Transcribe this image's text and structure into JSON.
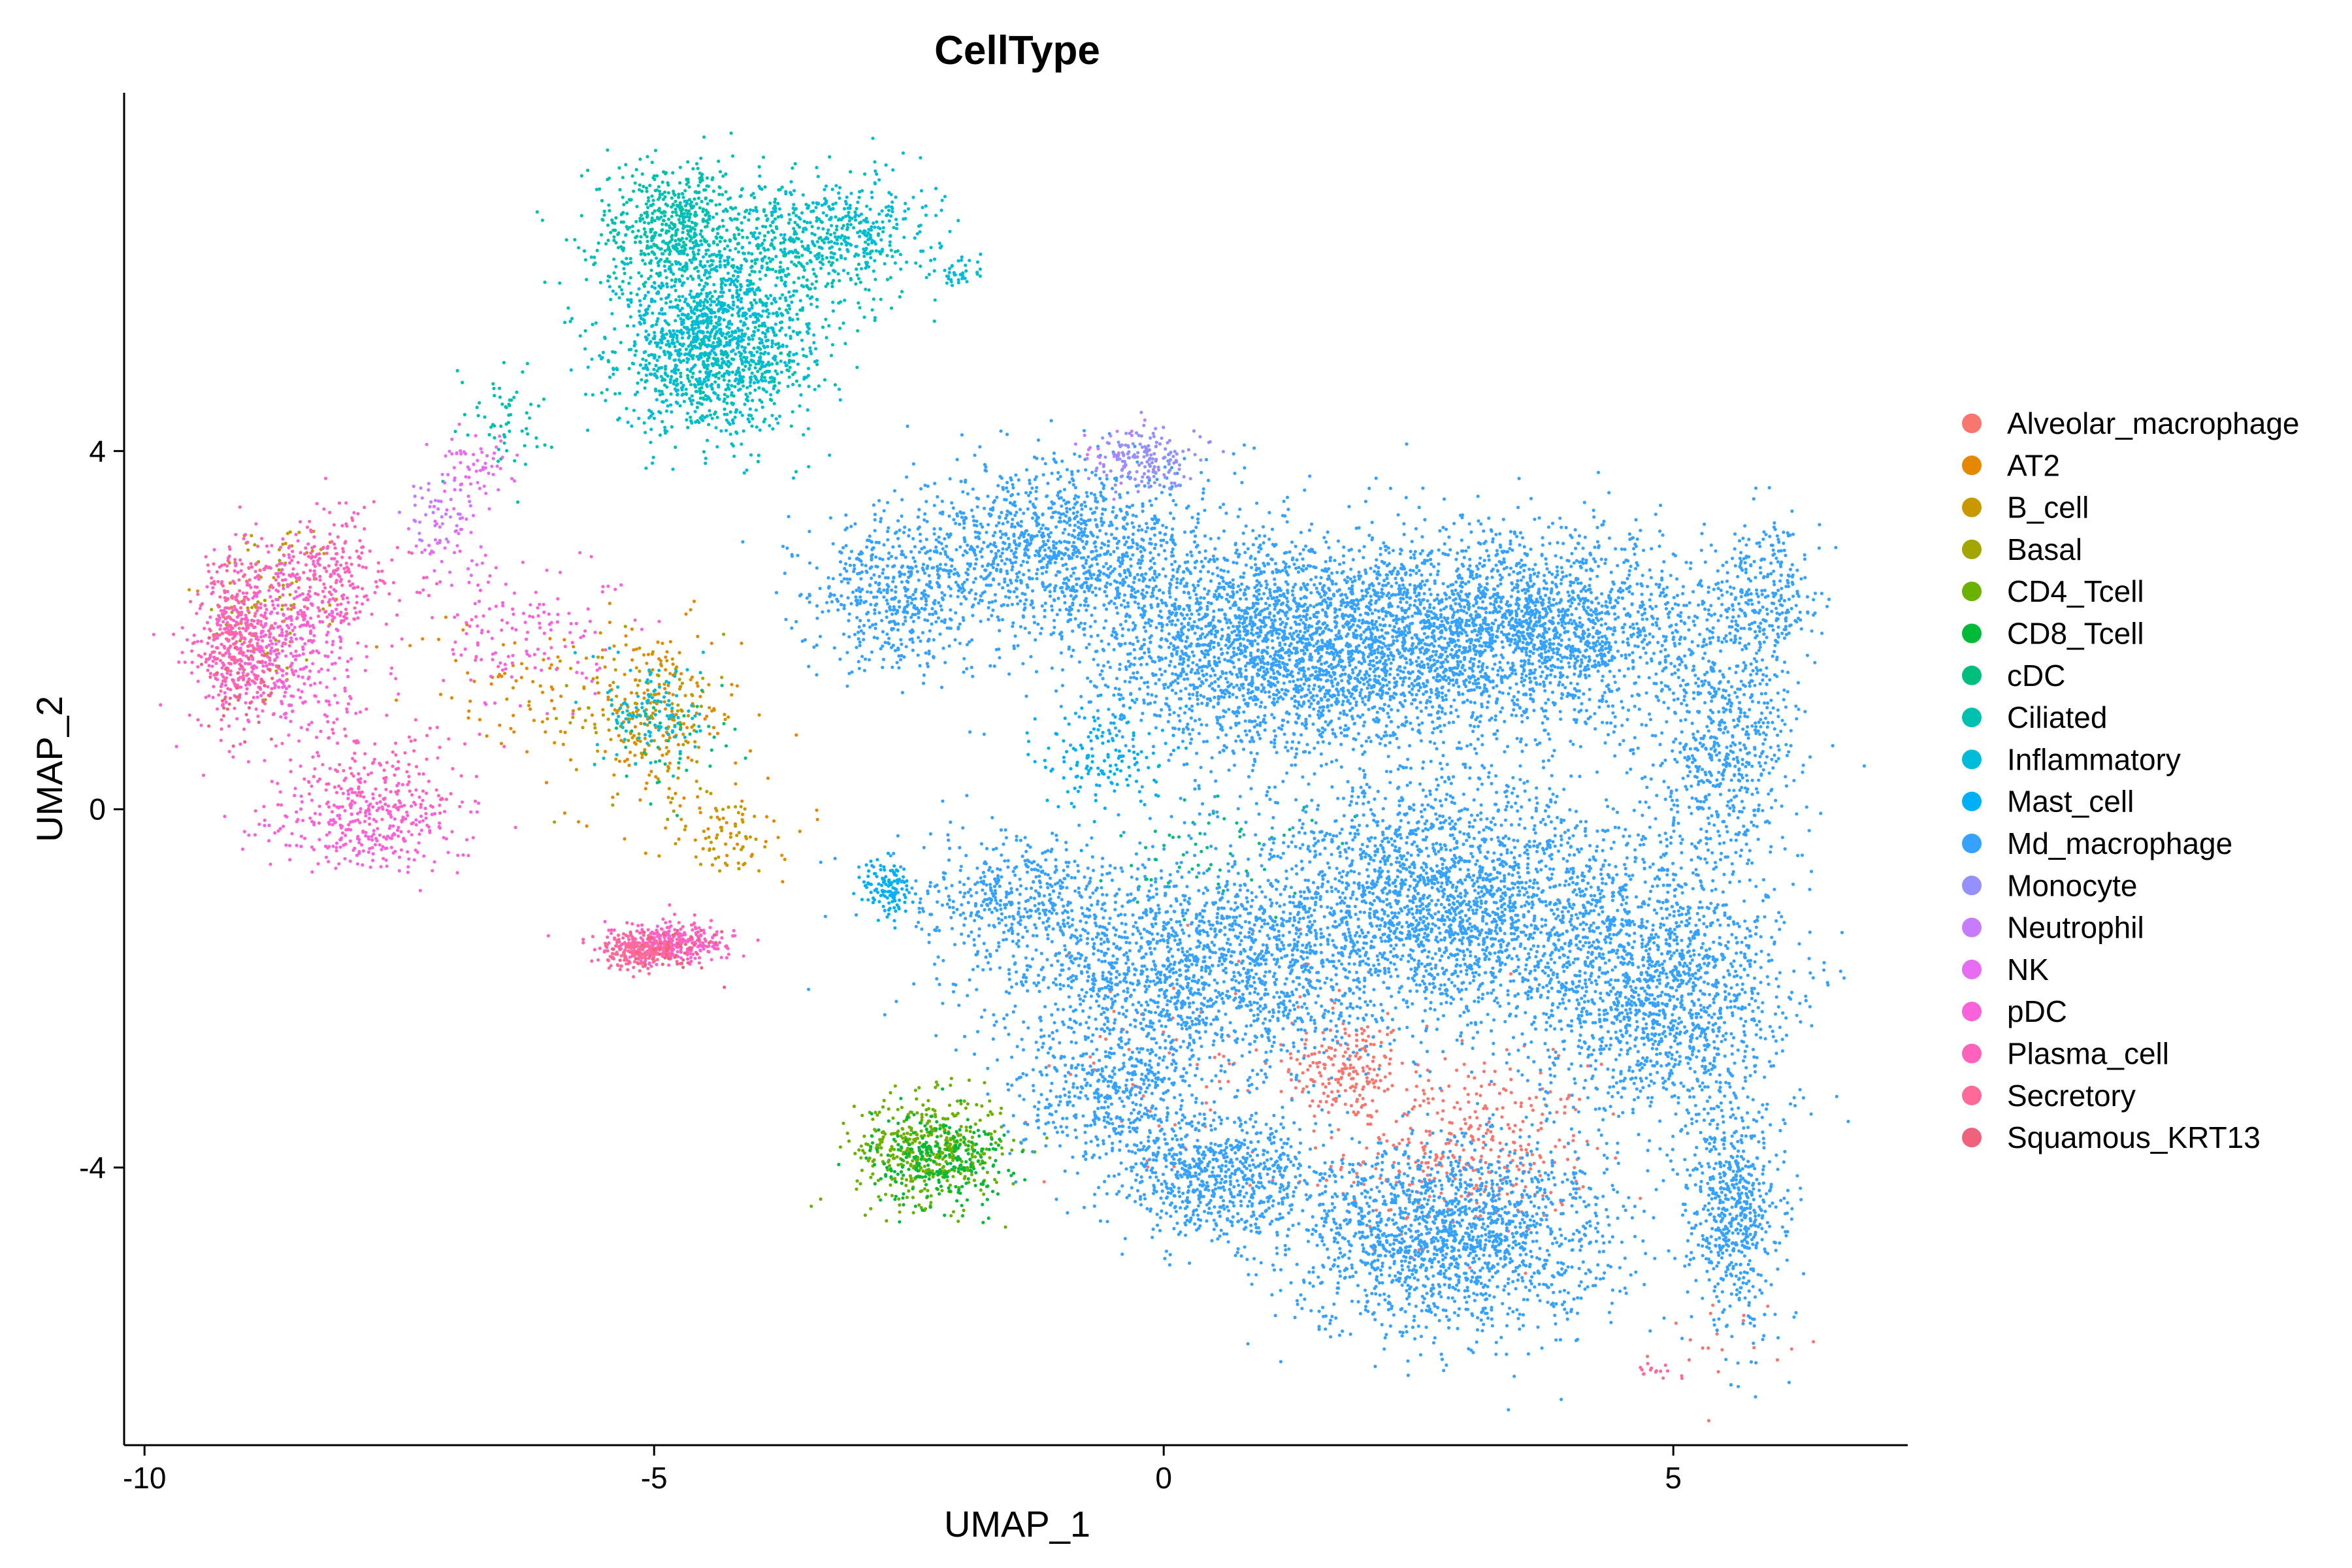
{
  "chart_data": {
    "type": "scatter",
    "title": "CellType",
    "xlabel": "UMAP_1",
    "ylabel": "UMAP_2",
    "xlim": [
      -10.2,
      7.3
    ],
    "ylim": [
      -7.1,
      8.0
    ],
    "x_ticks": [
      -10,
      -5,
      0,
      5
    ],
    "x_tick_labels": [
      "-10",
      "-5",
      "0",
      "5"
    ],
    "y_ticks": [
      -4,
      0,
      4
    ],
    "y_tick_labels": [
      "-4",
      "0",
      "4"
    ],
    "grid": false,
    "legend_position": "right",
    "series": [
      {
        "name": "Alveolar_macrophage",
        "color": "#F8766D",
        "clusters": [
          [
            1.8,
            -2.9,
            0.5,
            0.5,
            180
          ],
          [
            3.0,
            -3.8,
            1.0,
            0.8,
            350
          ],
          [
            0.7,
            -2.8,
            1.5,
            1.2,
            90
          ],
          [
            5.5,
            -5.9,
            0.5,
            0.4,
            20
          ]
        ]
      },
      {
        "name": "AT2",
        "color": "#E58700",
        "clusters": [
          [
            -5.0,
            1.0,
            0.7,
            0.9,
            160
          ],
          [
            -6.5,
            1.4,
            0.8,
            0.7,
            60
          ],
          [
            -4.2,
            -0.2,
            0.6,
            0.5,
            40
          ]
        ]
      },
      {
        "name": "B_cell",
        "color": "#C99800",
        "clusters": [
          [
            -5.1,
            1.1,
            0.6,
            0.7,
            120
          ],
          [
            -4.3,
            -0.3,
            0.5,
            0.4,
            50
          ],
          [
            -8.6,
            2.5,
            0.6,
            0.6,
            60
          ]
        ]
      },
      {
        "name": "Basal",
        "color": "#A3A500",
        "clusters": [
          [
            -8.8,
            2.2,
            0.4,
            0.8,
            40
          ],
          [
            -5.0,
            1.0,
            0.8,
            0.8,
            40
          ]
        ]
      },
      {
        "name": "CD4_Tcell",
        "color": "#6BB100",
        "clusters": [
          [
            -2.3,
            -3.8,
            0.6,
            0.5,
            450
          ]
        ]
      },
      {
        "name": "CD8_Tcell",
        "color": "#00BA38",
        "clusters": [
          [
            -2.2,
            -3.9,
            0.55,
            0.45,
            250
          ]
        ]
      },
      {
        "name": "cDC",
        "color": "#00BF7D",
        "clusters": [
          [
            0.5,
            -0.5,
            0.8,
            0.6,
            60
          ],
          [
            -4.8,
            0.8,
            0.5,
            0.5,
            40
          ]
        ]
      },
      {
        "name": "Ciliated",
        "color": "#00C0AF",
        "clusters": [
          [
            -4.8,
            6.5,
            0.7,
            0.6,
            600
          ],
          [
            -4.4,
            5.0,
            0.8,
            0.6,
            500
          ],
          [
            -3.5,
            6.2,
            0.8,
            0.6,
            300
          ],
          [
            -6.5,
            4.4,
            0.4,
            0.5,
            60
          ]
        ]
      },
      {
        "name": "Inflammatory",
        "color": "#00BCD8",
        "clusters": [
          [
            -4.4,
            5.3,
            0.8,
            0.9,
            1000
          ],
          [
            -3.2,
            6.5,
            0.8,
            0.5,
            300
          ],
          [
            -5.0,
            1.1,
            0.4,
            0.5,
            120
          ],
          [
            -2.0,
            6.0,
            0.2,
            0.2,
            40
          ]
        ]
      },
      {
        "name": "Mast_cell",
        "color": "#00B0F6",
        "clusters": [
          [
            -2.7,
            -0.9,
            0.2,
            0.3,
            120
          ],
          [
            -0.6,
            0.6,
            0.5,
            0.5,
            150
          ]
        ]
      },
      {
        "name": "Md_macrophage",
        "color": "#35A2FF",
        "clusters": [
          [
            1.2,
            1.8,
            1.6,
            1.0,
            2600
          ],
          [
            3.5,
            2.0,
            1.6,
            0.9,
            2300
          ],
          [
            -1.0,
            2.9,
            1.3,
            0.8,
            1200
          ],
          [
            -2.6,
            2.4,
            0.7,
            0.7,
            500
          ],
          [
            0.3,
            -1.8,
            1.7,
            1.0,
            1700
          ],
          [
            2.8,
            -1.0,
            1.6,
            1.1,
            2300
          ],
          [
            4.8,
            -2.0,
            1.1,
            1.3,
            1600
          ],
          [
            2.8,
            -4.8,
            1.3,
            0.9,
            1700
          ],
          [
            0.5,
            -4.1,
            0.8,
            0.6,
            700
          ],
          [
            5.5,
            0.8,
            0.6,
            1.1,
            600
          ],
          [
            5.6,
            -4.5,
            0.4,
            1.1,
            600
          ],
          [
            5.9,
            2.5,
            0.4,
            0.6,
            250
          ],
          [
            -1.5,
            -1.0,
            0.8,
            0.6,
            400
          ],
          [
            -0.5,
            -3.1,
            0.8,
            0.7,
            500
          ]
        ]
      },
      {
        "name": "Monocyte",
        "color": "#9590FF",
        "clusters": [
          [
            -0.2,
            3.9,
            0.45,
            0.3,
            160
          ]
        ]
      },
      {
        "name": "Neutrophil",
        "color": "#C77CFF",
        "clusters": [
          [
            -7.1,
            3.3,
            0.3,
            0.3,
            40
          ],
          [
            -0.5,
            4.0,
            0.3,
            0.3,
            20
          ]
        ]
      },
      {
        "name": "NK",
        "color": "#E76BF3",
        "clusters": [
          [
            -6.7,
            3.8,
            0.3,
            0.3,
            60
          ],
          [
            -7.0,
            3.0,
            0.4,
            0.4,
            40
          ]
        ]
      },
      {
        "name": "pDC",
        "color": "#FA62DB",
        "clusters": [
          [
            -8.7,
            1.8,
            0.7,
            0.9,
            500
          ],
          [
            -7.8,
            -0.2,
            0.8,
            0.4,
            300
          ],
          [
            -4.8,
            -1.5,
            0.5,
            0.2,
            120
          ],
          [
            -6.2,
            2.0,
            0.8,
            0.8,
            140
          ]
        ]
      },
      {
        "name": "Plasma_cell",
        "color": "#FF62BC",
        "clusters": [
          [
            -9.1,
            1.9,
            0.3,
            0.8,
            250
          ],
          [
            -8.2,
            2.6,
            0.6,
            0.5,
            250
          ],
          [
            -4.9,
            -1.5,
            0.45,
            0.2,
            200
          ],
          [
            -7.7,
            0.3,
            0.7,
            0.5,
            150
          ]
        ]
      },
      {
        "name": "Secretory",
        "color": "#FF6A98",
        "clusters": [
          [
            -5.2,
            -1.6,
            0.3,
            0.15,
            160
          ],
          [
            -9.1,
            2.0,
            0.3,
            0.6,
            100
          ],
          [
            4.9,
            -6.3,
            0.3,
            0.1,
            15
          ]
        ]
      },
      {
        "name": "Squamous_KRT13",
        "color": "#F0627C",
        "clusters": [
          [
            -4.8,
            -1.6,
            0.4,
            0.2,
            60
          ],
          [
            -9.0,
            1.3,
            0.3,
            0.5,
            40
          ]
        ]
      }
    ]
  }
}
